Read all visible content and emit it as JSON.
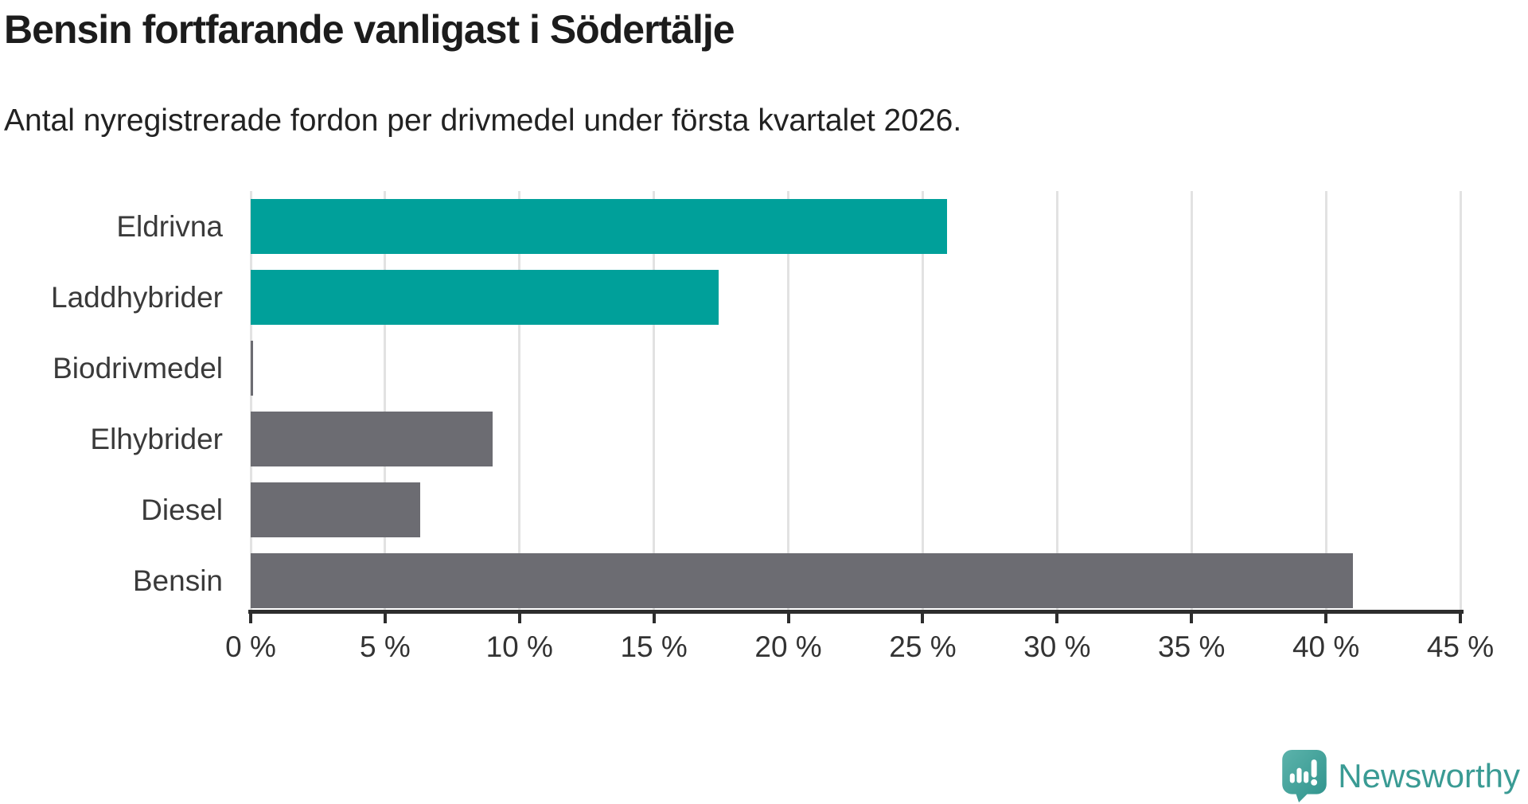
{
  "header": {
    "title": "Bensin fortfarande vanligast i Södertälje",
    "subtitle": "Antal nyregistrerade fordon per drivmedel under första kvartalet 2026."
  },
  "chart_data": {
    "type": "bar",
    "orientation": "horizontal",
    "title": "Bensin fortfarande vanligast i Södertälje",
    "subtitle": "Antal nyregistrerade fordon per drivmedel under första kvartalet 2026.",
    "categories": [
      "Eldrivna",
      "Laddhybrider",
      "Biodrivmedel",
      "Elhybrider",
      "Diesel",
      "Bensin"
    ],
    "values": [
      25.9,
      17.4,
      0.1,
      9.0,
      6.3,
      41.0
    ],
    "unit": "%",
    "bar_colors": [
      "#00a09a",
      "#00a09a",
      "#6c6c72",
      "#6c6c72",
      "#6c6c72",
      "#6c6c72"
    ],
    "xlim": [
      0,
      45
    ],
    "x_tick_step": 5,
    "x_tick_labels": [
      "0 %",
      "5 %",
      "10 %",
      "15 %",
      "20 %",
      "25 %",
      "30 %",
      "35 %",
      "40 %",
      "45 %"
    ],
    "grid": "vertical-gridlines-on",
    "legend": "none"
  },
  "colors": {
    "accent_teal": "#00a09a",
    "bar_gray": "#6c6c72",
    "gridline": "#e2e2e2",
    "axis_line": "#2d2d2d",
    "title_text": "#1c1c1c",
    "label_text": "#3a3a3a",
    "logo_teal": "#3a9b94"
  },
  "branding": {
    "logo_text": "Newsworthy",
    "logo_icon": "newsworthy-speech-bubble-bar-chart-icon"
  }
}
